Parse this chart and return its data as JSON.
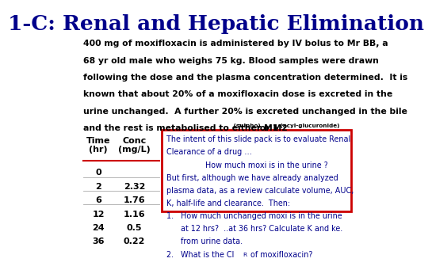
{
  "title_part1": "1-C:",
  "title_part2": " Renal and Hepatic Elimination",
  "body_lines": [
    "400 mg of moxifloxacin is administered by IV bolus to Mr BB, a",
    "68 yr old male who weighs 75 kg. Blood samples were drawn",
    "following the dose and the plasma concentration determined.  It is",
    "known that about 20% of a moxifloxacin dose is excreted in the",
    "urine unchanged.  A further 20% is excreted unchanged in the bile"
  ],
  "last_line_main": "and the rest is metabolised to either M1",
  "last_line_sulpho": " (sulpho)",
  "last_line_m2": " or M2",
  "last_line_acyl": " (acyl-glucuronide)",
  "table_times": [
    "0",
    "2",
    "6",
    "12",
    "24",
    "36"
  ],
  "table_concs": [
    "",
    "2.32",
    "1.76",
    "1.16",
    "0.5",
    "0.22"
  ],
  "box_lines": [
    "The intent of this slide pack is to evaluate Renal",
    "Clearance of a drug …",
    "How much moxi is in the urine ?",
    "But first, although we have already analyzed",
    "plasma data, as a review calculate volume, AUC,",
    "K, half-life and clearance.  Then:",
    "1.   How much unchanged moxi is in the urine",
    "      at 12 hrs?  ..at 36 hrs? Calculate K and ke.",
    "      from urine data."
  ],
  "box_line_indent": [
    false,
    false,
    true,
    false,
    false,
    false,
    false,
    false,
    false
  ],
  "bg_color": "#ffffff",
  "title_color": "#00008B",
  "body_color": "#000000",
  "box_text_color": "#00008B",
  "box_border_color": "#cc0000",
  "table_red_color": "#cc0000",
  "table_gray_color": "#aaaaaa"
}
